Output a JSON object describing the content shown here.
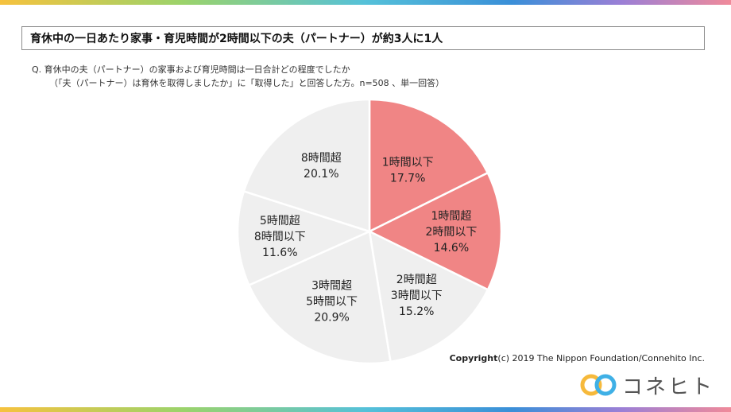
{
  "header": {
    "title": "育休中の一日あたり家事・育児時間が2時間以下の夫（パートナー）が約3人に1人"
  },
  "question": {
    "line1": "Q.  育休中の夫（パートナー）の家事および育児時間は一日合計どの程度でしたか",
    "line2": "（「夫（パートナー）は育休を取得しましたか」に「取得した」と回答した方。n=508 、単一回答）"
  },
  "chart_data": {
    "type": "pie",
    "title": "",
    "start_angle_deg": 0,
    "direction": "clockwise",
    "slices": [
      {
        "label_lines": [
          "1時間以下"
        ],
        "value": 17.7,
        "value_label": "17.7%",
        "color": "#f08585"
      },
      {
        "label_lines": [
          "1時間超",
          "2時間以下"
        ],
        "value": 14.6,
        "value_label": "14.6%",
        "color": "#f08585"
      },
      {
        "label_lines": [
          "2時間超",
          "3時間以下"
        ],
        "value": 15.2,
        "value_label": "15.2%",
        "color": "#efefef"
      },
      {
        "label_lines": [
          "3時間超",
          "5時間以下"
        ],
        "value": 20.9,
        "value_label": "20.9%",
        "color": "#efefef"
      },
      {
        "label_lines": [
          "5時間超",
          "8時間以下"
        ],
        "value": 11.6,
        "value_label": "11.6%",
        "color": "#efefef"
      },
      {
        "label_lines": [
          "8時間超"
        ],
        "value": 20.1,
        "value_label": "20.1%",
        "color": "#efefef"
      }
    ]
  },
  "footer": {
    "copyright_bold": "Copyright",
    "copyright_rest": "(c) 2019 The Nippon Foundation/Connehito Inc.",
    "logo_text": "コネヒト"
  },
  "colors": {
    "highlight": "#f08585",
    "base": "#efefef",
    "logo_yellow": "#f6b93b",
    "logo_blue": "#3fb0e6"
  }
}
